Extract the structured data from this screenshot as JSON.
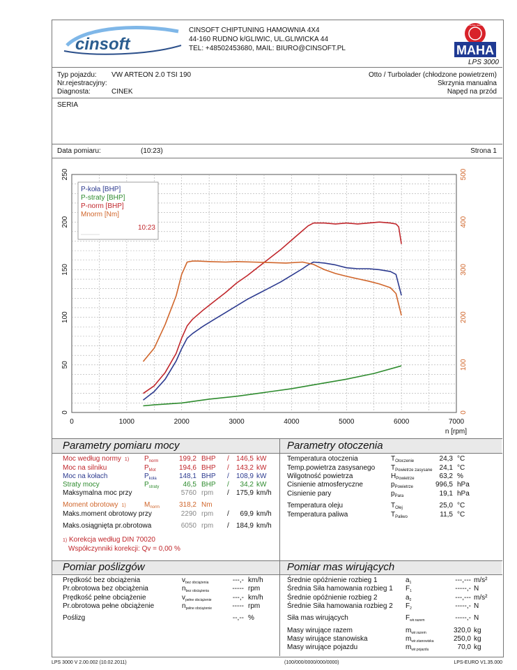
{
  "company": {
    "logo_text": "cinsoft",
    "name": "CINSOFT CHIPTUNING HAMOWNIA 4X4",
    "address": "44-160 RUDNO k/GLIWIC, UL.GLIWICKA 44",
    "contact": "TEL: +48502453680, MAIL: BIURO@CINSOFT.PL",
    "maha_seal": "Maschinenbau Haldenwang",
    "maha_brand": "MAHA",
    "device": "LPS 3000"
  },
  "vehicle": {
    "type_label": "Typ pojazdu:",
    "type_value": "VW ARTEON 2.0 TSI 190",
    "reg_label": "Nr.rejestracyjny:",
    "reg_value": "",
    "diag_label": "Diagnosta:",
    "diag_value": "CINEK",
    "engine": "Otto / Turbolader (chłodzone powietrzem)",
    "gearbox": "Skrzynia manualna",
    "drive": "Napęd na przód",
    "series": "SERIA"
  },
  "measurement": {
    "date_label": "Data pomiaru:",
    "time": "(10:23)",
    "page": "Strona 1"
  },
  "chart_data": {
    "type": "line",
    "xlabel": "n [rpm]",
    "xlim": [
      0,
      7000
    ],
    "x_ticks": [
      "0",
      "1000",
      "2000",
      "3000",
      "4000",
      "5000",
      "6000",
      "7000"
    ],
    "ylim_left": [
      0,
      250
    ],
    "y_ticks_left": [
      "0",
      "50",
      "100",
      "150",
      "200",
      "250"
    ],
    "ylim_right": [
      0,
      500
    ],
    "y_ticks_right": [
      "0",
      "100",
      "200",
      "300",
      "400",
      "500"
    ],
    "grid": true,
    "legend_position": "top-left",
    "legend": [
      {
        "label": "P-koła [BHP]",
        "color": "#2c3a8f"
      },
      {
        "label": "P-straty [BHP]",
        "color": "#2e8b2e"
      },
      {
        "label": "P-norm [BHP]",
        "color": "#c0262b"
      },
      {
        "label": "Mnorm [Nm]",
        "color": "#d0652a"
      }
    ],
    "legend_time": "10:23",
    "series": [
      {
        "name": "P-koła [BHP]",
        "axis": "left",
        "color": "#2c3a8f",
        "x": [
          1300,
          1500,
          1700,
          1900,
          2000,
          2100,
          2200,
          2400,
          2600,
          2800,
          3000,
          3200,
          3400,
          3600,
          3800,
          4000,
          4200,
          4300,
          4400,
          4600,
          4800,
          5000,
          5200,
          5400,
          5600,
          5800,
          5900,
          6000
        ],
        "y": [
          13,
          22,
          35,
          54,
          67,
          78,
          83,
          91,
          98,
          105,
          112,
          119,
          125,
          131,
          137,
          144,
          151,
          155,
          158,
          157,
          155,
          152,
          151,
          151,
          150,
          148,
          145,
          123
        ]
      },
      {
        "name": "P-straty [BHP]",
        "axis": "left",
        "color": "#2e8b2e",
        "x": [
          1300,
          1500,
          2000,
          2500,
          3000,
          3500,
          4000,
          4500,
          5000,
          5500,
          6000
        ],
        "y": [
          7,
          8,
          10,
          14,
          17,
          21,
          25,
          30,
          35,
          41,
          49
        ]
      },
      {
        "name": "P-norm [BHP]",
        "axis": "left",
        "color": "#c0262b",
        "x": [
          1300,
          1500,
          1700,
          1900,
          2000,
          2100,
          2200,
          2400,
          2600,
          2800,
          3000,
          3200,
          3400,
          3600,
          3800,
          4000,
          4200,
          4300,
          4400,
          4600,
          4800,
          5000,
          5200,
          5400,
          5600,
          5800,
          5900,
          5950,
          6000
        ],
        "y": [
          20,
          28,
          42,
          62,
          78,
          91,
          98,
          108,
          117,
          126,
          136,
          144,
          153,
          162,
          171,
          181,
          191,
          196,
          199,
          199,
          198,
          199,
          198,
          199,
          200,
          199,
          198,
          195,
          177
        ]
      },
      {
        "name": "Mnorm [Nm]",
        "axis": "right",
        "color": "#d0652a",
        "x": [
          1300,
          1500,
          1700,
          1900,
          2000,
          2100,
          2200,
          2300,
          2500,
          2800,
          3000,
          3300,
          3600,
          3900,
          4200,
          4400,
          4600,
          4800,
          5000,
          5200,
          5400,
          5600,
          5800,
          5900,
          6000
        ],
        "y": [
          107,
          135,
          185,
          245,
          290,
          316,
          318,
          318,
          317,
          316,
          317,
          316,
          315,
          314,
          316,
          311,
          300,
          292,
          286,
          281,
          276,
          270,
          262,
          250,
          204
        ]
      }
    ]
  },
  "power_params": {
    "title": "Parametry pomiaru mocy",
    "rows": [
      {
        "label": "Moc według normy",
        "note": "1)",
        "sym": "P",
        "sub": "norm",
        "v1": "199,2",
        "u1": "BHP",
        "sep": "/",
        "v2": "146,5",
        "u2": "kW"
      },
      {
        "label": "Moc na silniku",
        "note": "",
        "sym": "P",
        "sub": "Mot",
        "v1": "194,6",
        "u1": "BHP",
        "sep": "/",
        "v2": "143,2",
        "u2": "kW"
      },
      {
        "label": "Moc na kołach",
        "note": "",
        "sym": "P",
        "sub": "koła",
        "v1": "148,1",
        "u1": "BHP",
        "sep": "/",
        "v2": "108,9",
        "u2": "kW"
      },
      {
        "label": "Straty mocy",
        "note": "",
        "sym": "P",
        "sub": "straty",
        "v1": "46,5",
        "u1": "BHP",
        "sep": "/",
        "v2": "34,2",
        "u2": "kW"
      },
      {
        "label": "Maksymalna moc przy",
        "note": "",
        "sym": "",
        "sub": "",
        "v1": "5760",
        "u1": "rpm",
        "sep": "/",
        "v2": "175,9",
        "u2": "km/h"
      },
      {
        "label": "Moment obrotowy",
        "note": "1)",
        "sym": "M",
        "sub": "norm",
        "v1": "318,2",
        "u1": "Nm",
        "sep": "",
        "v2": "",
        "u2": ""
      },
      {
        "label": "Maks.moment obrotowy przy",
        "note": "",
        "sym": "",
        "sub": "",
        "v1": "2290",
        "u1": "rpm",
        "sep": "/",
        "v2": "69,9",
        "u2": "km/h"
      },
      {
        "label": "Maks.osiągnięta pr.obrotowa",
        "note": "",
        "sym": "",
        "sub": "",
        "v1": "6050",
        "u1": "rpm",
        "sep": "/",
        "v2": "184,9",
        "u2": "km/h"
      }
    ],
    "footnote1": "Korekcja według DIN 70020",
    "footnote1_mark": "1)",
    "footnote2": "Współczynniki korekcji: Qv =   0,00 %"
  },
  "env_params": {
    "title": "Parametry otoczenia",
    "rows": [
      {
        "label": "Temperatura otoczenia",
        "sym": "T",
        "sub": "Otoczenie",
        "value": "24,3",
        "unit": "°C"
      },
      {
        "label": "Temp.powietrza zasysanego",
        "sym": "T",
        "sub": "Powietrze zasysane",
        "value": "24,1",
        "unit": "°C"
      },
      {
        "label": "Wilgotność powietrza",
        "sym": "H",
        "sub": "Powietrze",
        "value": "63,2",
        "unit": "%"
      },
      {
        "label": "Cisnienie atmosferyczne",
        "sym": "p",
        "sub": "Powietrze",
        "value": "996,5",
        "unit": "hPa"
      },
      {
        "label": "Cisnienie pary",
        "sym": "p",
        "sub": "Para",
        "value": "19,1",
        "unit": "hPa"
      },
      {
        "label": "Temperatura oleju",
        "sym": "T",
        "sub": "Olej",
        "value": "25,0",
        "unit": "°C"
      },
      {
        "label": "Temperatura paliwa",
        "sym": "T",
        "sub": "Paliwo",
        "value": "11,5",
        "unit": "°C"
      }
    ]
  },
  "slip": {
    "title": "Pomiar poślizgów",
    "rows": [
      {
        "label": "Prędkość bez obciążenia",
        "sym": "v",
        "sub": "bez obciążenia",
        "value": "---,-",
        "unit": "km/h"
      },
      {
        "label": "Pr.obrotowa bez obciążenia",
        "sym": "n",
        "sub": "bez obciążenia",
        "value": "-----",
        "unit": "rpm"
      },
      {
        "label": "Prędkość pełne obciążenie",
        "sym": "v",
        "sub": "pełne obciążenie",
        "value": "---,-",
        "unit": "km/h"
      },
      {
        "label": "Pr.obrotowa pełne obciążenie",
        "sym": "n",
        "sub": "pełne obciążenie",
        "value": "-----",
        "unit": "rpm"
      },
      {
        "label": "Poślizg",
        "sym": "",
        "sub": "",
        "value": "--,--",
        "unit": "%"
      }
    ]
  },
  "mass": {
    "title": "Pomiar mas wirujących",
    "rows": [
      {
        "label": "Średnie opóźnienie rozbieg 1",
        "sym": "a",
        "sub": "1",
        "value": "---,---",
        "unit": "m/s²"
      },
      {
        "label": "Średnia Siła hamowania rozbieg 1",
        "sym": "F",
        "sub": "1",
        "value": "-----,-",
        "unit": "N"
      },
      {
        "label": "Średnie opóźnienie rozbieg 2",
        "sym": "a",
        "sub": "2",
        "value": "---,---",
        "unit": "m/s²"
      },
      {
        "label": "Średnie Siła hamowania rozbieg 2",
        "sym": "F",
        "sub": "2",
        "value": "-----,-",
        "unit": "N"
      },
      {
        "label": "Siła mas wirujących",
        "sym": "F",
        "sub": "wir.razem",
        "value": "-----,-",
        "unit": "N"
      },
      {
        "label": "Masy wirujące razem",
        "sym": "m",
        "sub": "wir.razem",
        "value": "320,0",
        "unit": "kg"
      },
      {
        "label": "Masy wirujące stanowiska",
        "sym": "m",
        "sub": "wir.stanowiska",
        "value": "250,0",
        "unit": "kg"
      },
      {
        "label": "Masy wirujące pojazdu",
        "sym": "m",
        "sub": "wir.pojazdu",
        "value": "70,0",
        "unit": "kg"
      }
    ]
  },
  "footer": {
    "left": "LPS 3000 V 2.00.002 (10.02.2011)",
    "center": "(100/000/0000/000/0000)",
    "right": "LPS-EURO V1.35.000"
  }
}
